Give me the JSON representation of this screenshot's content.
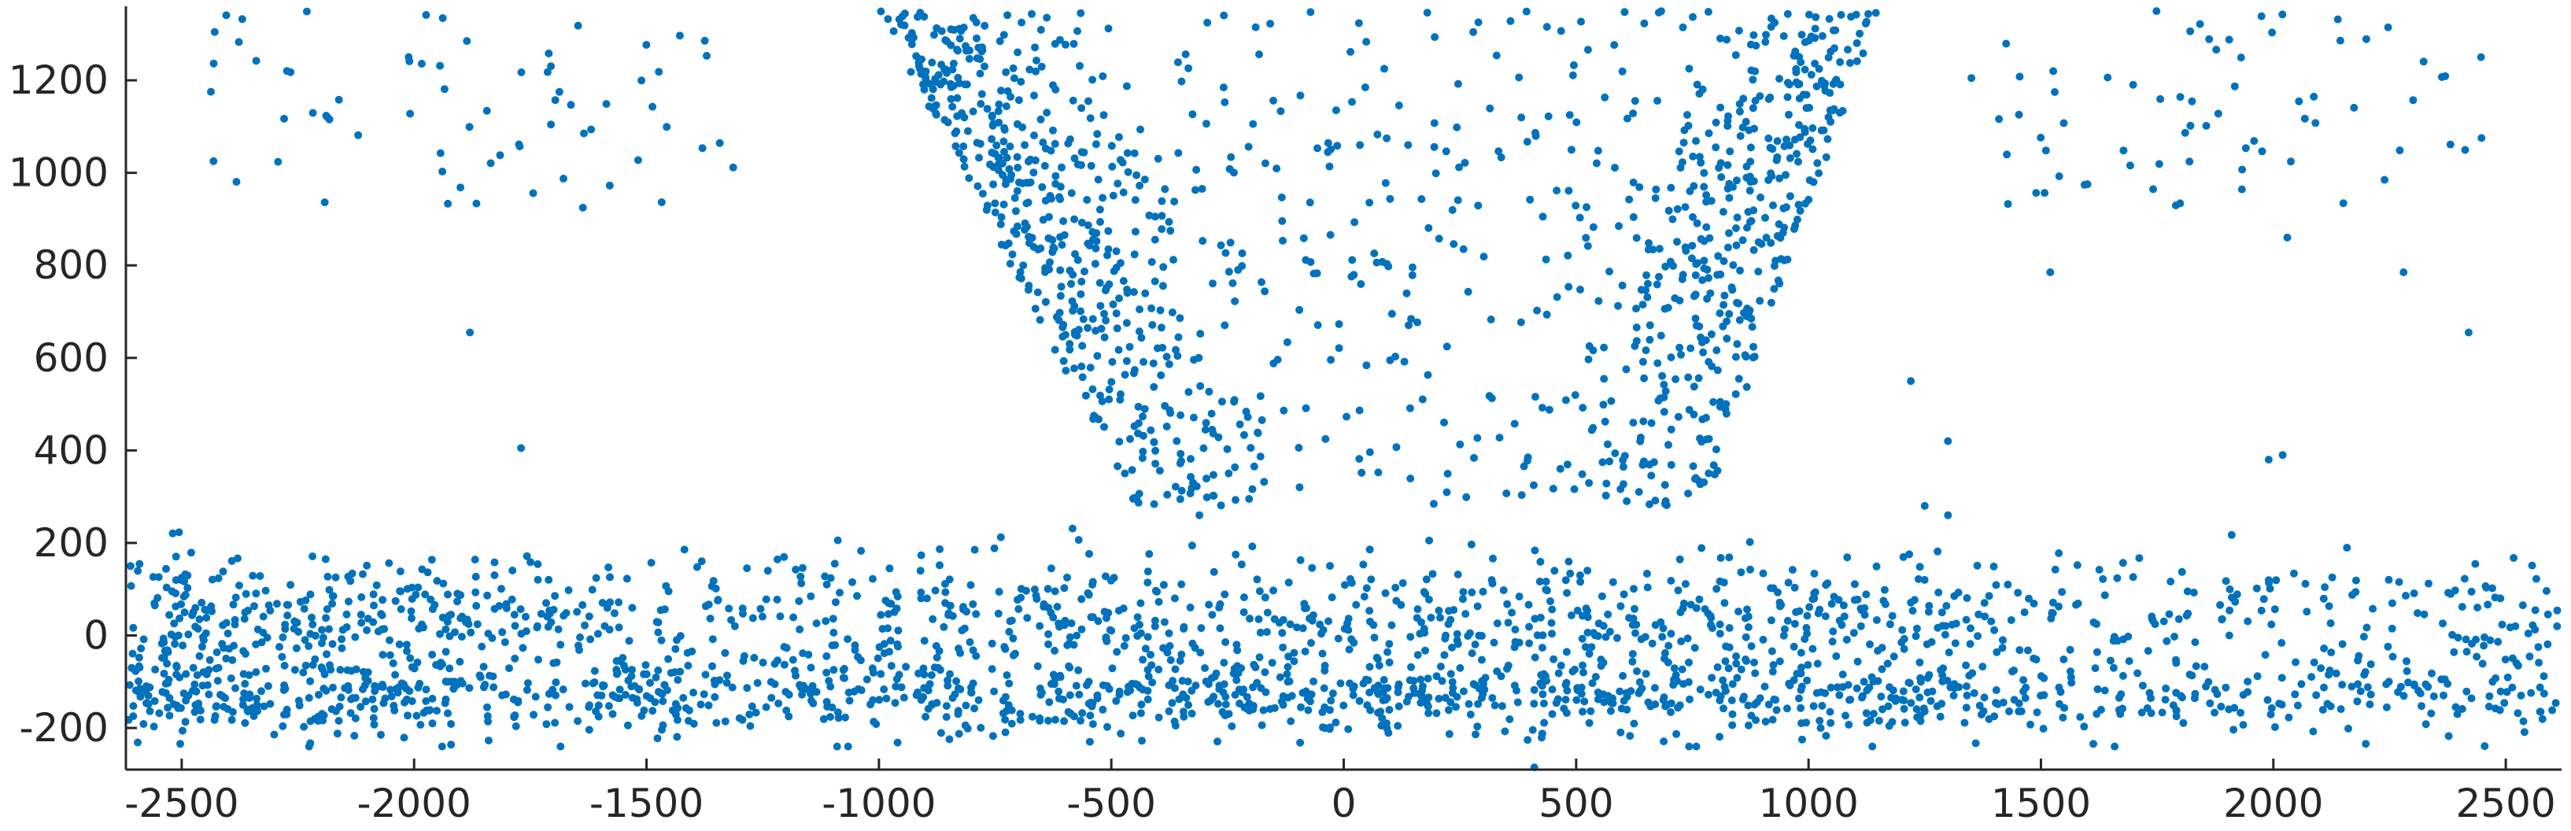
{
  "chart_data": {
    "type": "scatter",
    "title": "",
    "xlabel": "",
    "ylabel": "",
    "xlim": [
      -2620,
      2620
    ],
    "ylim": [
      -290,
      1360
    ],
    "xticks": [
      "-2500",
      "-2000",
      "-1500",
      "-1000",
      "-500",
      "0",
      "500",
      "1000",
      "1500",
      "2000",
      "2500"
    ],
    "yticks": [
      "-200",
      "0",
      "200",
      "400",
      "600",
      "800",
      "1000",
      "1200"
    ],
    "grid": false,
    "legend": "none",
    "marker_color": "#0072BD",
    "axis_color": "#262626",
    "point_count_approx": 2600,
    "clusters": [
      {
        "label": "low band left",
        "x_range": [
          -2620,
          -1000
        ],
        "y_range": [
          -250,
          260
        ],
        "density": "very high"
      },
      {
        "label": "low band center",
        "x_range": [
          -1000,
          1300
        ],
        "y_range": [
          -250,
          260
        ],
        "density": "very high"
      },
      {
        "label": "low band right",
        "x_range": [
          1300,
          2620
        ],
        "y_range": [
          -220,
          230
        ],
        "density": "high"
      },
      {
        "label": "upper bowl center",
        "x_range": [
          -1000,
          1150
        ],
        "y_range": [
          280,
          1350
        ],
        "density": "high"
      },
      {
        "label": "upper left sparse",
        "x_range": [
          -2450,
          -1300
        ],
        "y_range": [
          920,
          1350
        ],
        "density": "low"
      },
      {
        "label": "upper right sparse",
        "x_range": [
          1350,
          2450
        ],
        "y_range": [
          920,
          1350
        ],
        "density": "low"
      }
    ],
    "notable_points": [
      {
        "x": -1880,
        "y": 655
      },
      {
        "x": -1770,
        "y": 405
      },
      {
        "x": 1520,
        "y": 785
      },
      {
        "x": 2280,
        "y": 785
      },
      {
        "x": 2030,
        "y": 860
      },
      {
        "x": 2420,
        "y": 655
      },
      {
        "x": 1220,
        "y": 550
      },
      {
        "x": 1300,
        "y": 420
      },
      {
        "x": 2020,
        "y": 390
      },
      {
        "x": 1990,
        "y": 380
      },
      {
        "x": 2570,
        "y": -25
      },
      {
        "x": 410,
        "y": -285
      },
      {
        "x": 2640,
        "y": 145
      },
      {
        "x": -2610,
        "y": 150
      },
      {
        "x": 1250,
        "y": 280
      }
    ]
  }
}
